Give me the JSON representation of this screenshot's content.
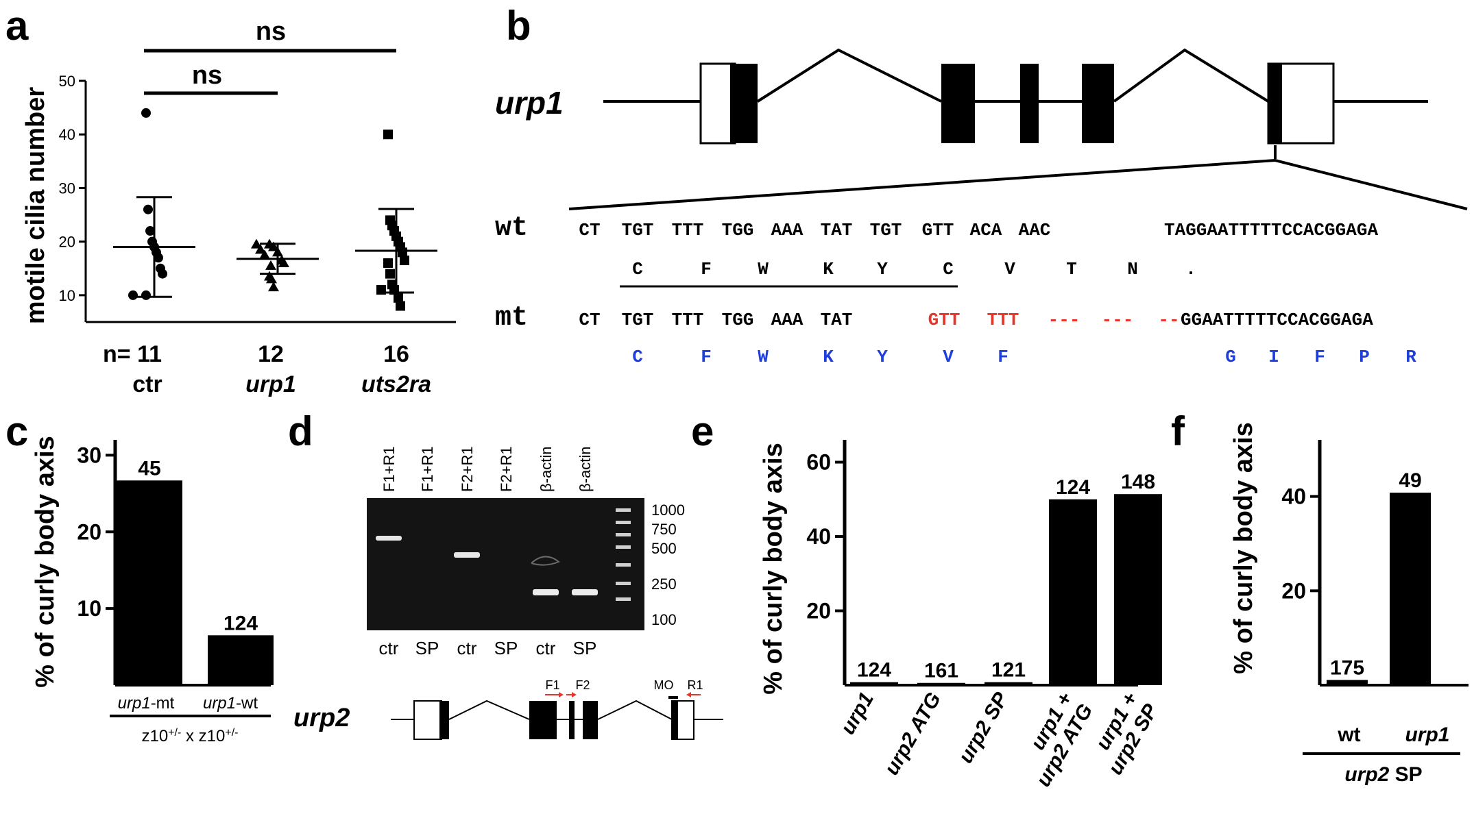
{
  "panels": {
    "a": {
      "letter": "a",
      "ns_top": "ns",
      "ns_mid": "ns",
      "n_prefix": "n= 11",
      "group_counts": [
        "12",
        "16"
      ],
      "groups": [
        "ctr",
        "urp1",
        "uts2ra"
      ],
      "ylabel": "motile cilia number",
      "yticks": [
        "10",
        "20",
        "30",
        "40",
        "50"
      ]
    },
    "b": {
      "letter": "b",
      "gene": "urp1",
      "wt_label": "wt",
      "mt_label": "mt",
      "wt_codons": [
        "CT",
        "TGT",
        "TTT",
        "TGG",
        "AAA",
        "TAT",
        "TGT",
        "GTT",
        "ACA",
        "AAC",
        "TAGGAATTTTTCCACGGAGA"
      ],
      "wt_aa": [
        "C",
        "F",
        "W",
        "K",
        "Y",
        "C",
        "V",
        "T",
        "N",
        "."
      ],
      "mt_codons_black": [
        "CT",
        "TGT",
        "TTT",
        "TGG",
        "AAA",
        "TAT"
      ],
      "mt_codons_red": [
        "GTT",
        "TTT",
        "---",
        "---",
        "--"
      ],
      "mt_tail": "GGAATTTTTCCACGGAGA",
      "mt_aa": [
        "C",
        "F",
        "W",
        "K",
        "Y",
        "V",
        "F",
        "G",
        "I",
        "F",
        "P",
        "R"
      ],
      "colors": {
        "mutation": "#e8352a",
        "aa_mt": "#1f3fdc"
      }
    },
    "c": {
      "letter": "c",
      "ylabel": "% of curly body axis",
      "yticks": [
        "10",
        "20",
        "30"
      ],
      "bar_labels": [
        "45",
        "124"
      ],
      "xcat_gene": [
        "urp1",
        "urp1"
      ],
      "xcat_suffix": [
        "-mt",
        "-wt"
      ],
      "cross_base": "z10",
      "cross_sup": "+/-",
      "cross_x": " x "
    },
    "d": {
      "letter": "d",
      "lanes_top": [
        "F1+R1",
        "F1+R1",
        "F2+R1",
        "F2+R1",
        "β-actin",
        "β-actin"
      ],
      "lanes_bottom": [
        "ctr",
        "SP",
        "ctr",
        "SP",
        "ctr",
        "SP"
      ],
      "ladder": [
        "1000",
        "750",
        "500",
        "250",
        "100"
      ],
      "gene": "urp2",
      "primers": [
        "F1",
        "F2",
        "MO",
        "R1"
      ],
      "colors": {
        "primer_arrow": "#e8352a"
      }
    },
    "e": {
      "letter": "e",
      "ylabel": "% of curly body axis",
      "yticks": [
        "20",
        "40",
        "60"
      ],
      "bar_labels": [
        "124",
        "161",
        "121",
        "124",
        "148"
      ],
      "xcats": [
        {
          "line1": "urp1",
          "line2": ""
        },
        {
          "line1": "urp2 ATG",
          "line2": ""
        },
        {
          "line1": "urp2 SP",
          "line2": ""
        },
        {
          "line1": "urp1 +",
          "line2": "urp2 ATG"
        },
        {
          "line1": "urp1 +",
          "line2": "urp2 SP"
        }
      ]
    },
    "f": {
      "letter": "f",
      "ylabel": "% of curly body axis",
      "yticks": [
        "20",
        "40"
      ],
      "bar_labels": [
        "175",
        "49"
      ],
      "xcats": [
        "wt",
        "urp1"
      ],
      "group_gene": "urp2",
      "group_suffix": " SP"
    }
  },
  "chart_data": [
    {
      "panel": "a",
      "type": "scatter",
      "ylabel": "motile cilia number",
      "ylim": [
        5,
        50
      ],
      "categories": [
        "ctr",
        "urp1",
        "uts2ra"
      ],
      "n": [
        11,
        12,
        16
      ],
      "mean": [
        19,
        16.8,
        18.3
      ],
      "sd": [
        9.3,
        2.8,
        7.8
      ],
      "points": [
        [
          44,
          26,
          22,
          20,
          19,
          18,
          17,
          15,
          14,
          10,
          10
        ],
        [
          19.5,
          19.5,
          19,
          18.5,
          18,
          17.5,
          16.5,
          16,
          15.5,
          13.5,
          13,
          11.5
        ],
        [
          40,
          24,
          23,
          22,
          21,
          20,
          19,
          18,
          16.5,
          16,
          14,
          12,
          11,
          11,
          9.5,
          8
        ]
      ]
    },
    {
      "panel": "c",
      "type": "bar",
      "ylabel": "% of curly body axis",
      "ylim": [
        0,
        32
      ],
      "categories": [
        "urp1-mt",
        "urp1-wt"
      ],
      "values": [
        26.7,
        6.5
      ],
      "n": [
        45,
        124
      ]
    },
    {
      "panel": "e",
      "type": "bar",
      "ylabel": "% of curly body axis",
      "ylim": [
        0,
        66
      ],
      "categories": [
        "urp1",
        "urp2 ATG",
        "urp2 SP",
        "urp1 + urp2 ATG",
        "urp1 + urp2 SP"
      ],
      "values": [
        0.8,
        0.6,
        0.8,
        50.0,
        51.4
      ],
      "n": [
        124,
        161,
        121,
        124,
        148
      ]
    },
    {
      "panel": "f",
      "type": "bar",
      "ylabel": "% of curly body axis",
      "ylim": [
        0,
        52
      ],
      "categories": [
        "wt",
        "urp1"
      ],
      "values": [
        1.1,
        40.8
      ],
      "n": [
        175,
        49
      ]
    }
  ]
}
